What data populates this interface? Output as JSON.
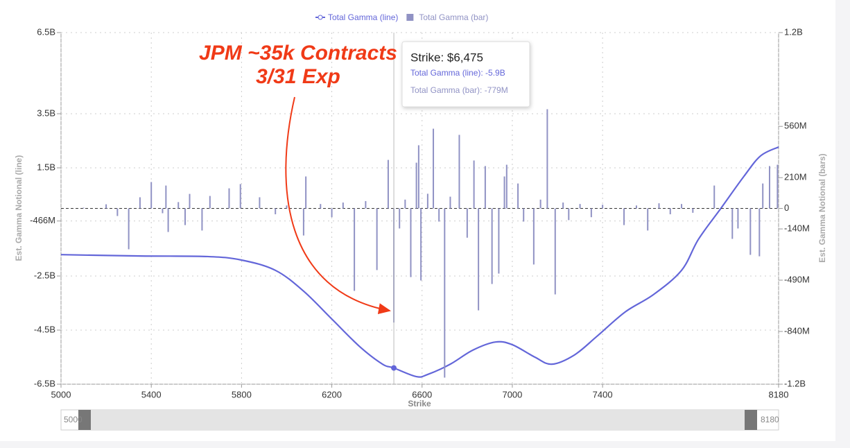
{
  "chart_data": {
    "type": "combo",
    "xlabel": "Strike",
    "ylabel": "Est. Gamma Notional (line)",
    "y2label": "Est. Gamma Notional (bars)",
    "xlim": [
      5000,
      8180
    ],
    "xticks": [
      5000,
      5400,
      5800,
      6200,
      6600,
      7000,
      7400,
      8180
    ],
    "ylim": [
      -6500000000,
      6500000000
    ],
    "yticks": [
      {
        "value": 6500000000,
        "label": "6.5B"
      },
      {
        "value": 3500000000,
        "label": "3.5B"
      },
      {
        "value": 1500000000,
        "label": "1.5B"
      },
      {
        "value": -466000000,
        "label": "-466M"
      },
      {
        "value": -2500000000,
        "label": "-2.5B"
      },
      {
        "value": -4500000000,
        "label": "-4.5B"
      },
      {
        "value": -6500000000,
        "label": "-6.5B"
      }
    ],
    "y2lim": [
      -1200000000,
      1200000000
    ],
    "y2ticks": [
      {
        "value": 1200000000,
        "label": "1.2B"
      },
      {
        "value": 560000000,
        "label": "560M"
      },
      {
        "value": 210000000,
        "label": "210M"
      },
      0,
      {
        "value": -140000000,
        "label": "-140M"
      },
      {
        "value": -490000000,
        "label": "-490M"
      },
      {
        "value": -840000000,
        "label": "-840M"
      },
      {
        "value": -1200000000,
        "label": "-1.2B"
      }
    ],
    "grid": true,
    "series": [
      {
        "name": "Total Gamma (line)",
        "type": "line",
        "axis": "y",
        "color": "#6366d9",
        "x": [
          5000,
          5350,
          5650,
          5800,
          5950,
          6075,
          6200,
          6325,
          6425,
          6475,
          6575,
          6625,
          6725,
          6825,
          6925,
          7000,
          7100,
          7175,
          7275,
          7375,
          7500,
          7625,
          7750,
          7825,
          7925,
          8025,
          8100,
          8180
        ],
        "values": [
          -1710000000,
          -1760000000,
          -1780000000,
          -1910000000,
          -2290000000,
          -3060000000,
          -4090000000,
          -5120000000,
          -5760000000,
          -5900000000,
          -6220000000,
          -6140000000,
          -5760000000,
          -5240000000,
          -4940000000,
          -5040000000,
          -5500000000,
          -5760000000,
          -5420000000,
          -4730000000,
          -3830000000,
          -3190000000,
          -2290000000,
          -1140000000,
          10000000,
          1170000000,
          1940000000,
          2270000000
        ]
      },
      {
        "name": "Total Gamma (bar)",
        "type": "bar",
        "axis": "y2",
        "color": "#9092c4",
        "x": [
          5100,
          5200,
          5250,
          5300,
          5350,
          5400,
          5450,
          5465,
          5475,
          5520,
          5550,
          5570,
          5625,
          5660,
          5745,
          5795,
          5880,
          5950,
          6000,
          6075,
          6085,
          6150,
          6200,
          6250,
          6300,
          6350,
          6400,
          6450,
          6475,
          6500,
          6525,
          6550,
          6575,
          6585,
          6595,
          6625,
          6650,
          6675,
          6700,
          6725,
          6765,
          6800,
          6830,
          6850,
          6880,
          6910,
          6940,
          6965,
          6975,
          7025,
          7050,
          7095,
          7125,
          7155,
          7190,
          7225,
          7250,
          7300,
          7350,
          7400,
          7495,
          7550,
          7600,
          7650,
          7700,
          7750,
          7800,
          7895,
          7975,
          8000,
          8055,
          8095,
          8110,
          8140,
          8175
        ],
        "values": [
          5000000,
          28000000,
          -52000000,
          -279000000,
          76000000,
          180000000,
          -33000000,
          156000000,
          -161000000,
          43000000,
          -114000000,
          99000000,
          -151000000,
          85000000,
          137000000,
          166000000,
          76000000,
          -40000000,
          20000000,
          -185000000,
          218000000,
          30000000,
          -60000000,
          40000000,
          -563000000,
          50000000,
          -421000000,
          331000000,
          -779000000,
          -137000000,
          60000000,
          -469000000,
          312000000,
          431000000,
          -492000000,
          100000000,
          544000000,
          -90000000,
          -1155000000,
          80000000,
          502000000,
          -200000000,
          327000000,
          -696000000,
          289000000,
          -516000000,
          -445000000,
          218000000,
          298000000,
          170000000,
          -90000000,
          -383000000,
          60000000,
          677000000,
          -587000000,
          40000000,
          -80000000,
          30000000,
          -60000000,
          25000000,
          -114000000,
          20000000,
          -151000000,
          35000000,
          -40000000,
          30000000,
          -30000000,
          156000000,
          -208000000,
          -137000000,
          -317000000,
          -327000000,
          170000000,
          289000000,
          298000000
        ]
      }
    ],
    "tooltip": {
      "title": "Strike: $6,475",
      "items": [
        "Total Gamma (line): -5.9B",
        "Total Gamma (bar): -779M"
      ]
    },
    "annotation": [
      "JPM ~35k Contracts",
      "3/31 Exp"
    ]
  }
}
